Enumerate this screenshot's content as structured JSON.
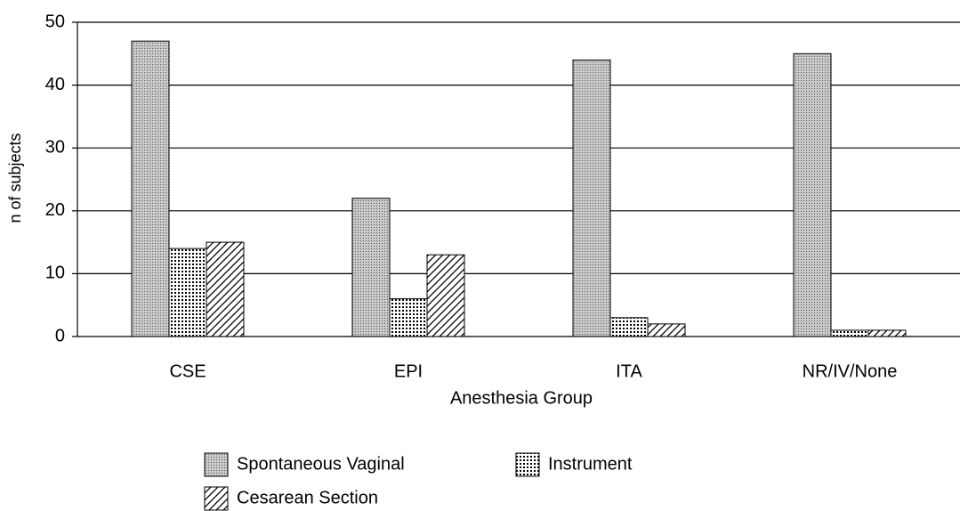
{
  "chart_data": {
    "type": "bar",
    "x_label": "Anesthesia Group",
    "y_label": "n of subjects",
    "categories": [
      "CSE",
      "EPI",
      "ITA",
      "NR/IV/None"
    ],
    "series": [
      {
        "name": "Spontaneous Vaginal",
        "color": "#c8c8c8",
        "pattern": "fine-dots",
        "values": [
          47,
          22,
          44,
          45
        ]
      },
      {
        "name": "Instrument",
        "color": "#ffffff",
        "pattern": "coarse-dots",
        "values": [
          14,
          6,
          3,
          1
        ]
      },
      {
        "name": "Cesarean Section",
        "color": "#ffffff",
        "pattern": "hatch",
        "values": [
          15,
          13,
          2,
          1
        ]
      }
    ],
    "ylim": [
      0,
      50
    ],
    "yticks": [
      0,
      10,
      20,
      30,
      40,
      50
    ],
    "grid": true,
    "legend": "bottom"
  }
}
